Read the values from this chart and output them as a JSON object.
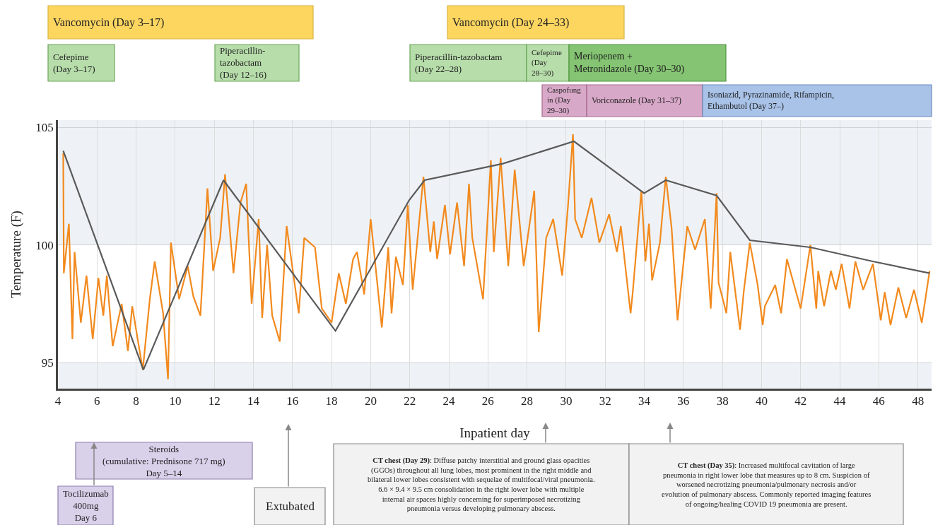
{
  "chart_data": {
    "type": "line",
    "xlabel": "Inpatient day",
    "ylabel": "Temperature (F)",
    "xlim": [
      4,
      48.7
    ],
    "xticks": [
      4,
      6,
      8,
      10,
      12,
      14,
      16,
      18,
      20,
      22,
      24,
      26,
      28,
      30,
      32,
      34,
      36,
      38,
      40,
      42,
      44,
      46,
      48
    ],
    "ylim": [
      93.9,
      105.3
    ],
    "yticks": [
      95,
      100,
      105
    ],
    "grid": true,
    "marker": "none",
    "line_style": "solid",
    "bands": [
      {
        "axis": "y",
        "from": 100,
        "to": 105.3,
        "color": "#eef2f6"
      },
      {
        "axis": "y",
        "from": 93.9,
        "to": 95,
        "color": "#eef2f6"
      }
    ],
    "series": [
      {
        "color": "#f28a1e",
        "x": [
          4.27,
          4.3,
          4.56,
          4.74,
          4.85,
          5.17,
          5.46,
          5.78,
          6.07,
          6.32,
          6.5,
          6.8,
          7.26,
          7.58,
          7.8,
          8.34,
          8.7,
          8.95,
          9.38,
          9.63,
          9.78,
          10.2,
          10.64,
          10.93,
          11.29,
          11.65,
          11.94,
          12.3,
          12.55,
          12.98,
          13.34,
          13.63,
          13.91,
          14.27,
          14.45,
          14.7,
          14.96,
          15.35,
          15.7,
          16.32,
          16.6,
          17.15,
          17.5,
          18.0,
          18.37,
          18.73,
          19.1,
          19.3,
          19.67,
          20.0,
          20.57,
          20.9,
          21.07,
          21.29,
          21.65,
          21.9,
          22.15,
          22.7,
          23.05,
          23.23,
          23.4,
          23.8,
          24.06,
          24.42,
          24.78,
          25.03,
          25.2,
          25.75,
          26.15,
          26.3,
          26.65,
          27.04,
          27.37,
          27.83,
          28.37,
          28.6,
          28.98,
          29.34,
          29.8,
          30.1,
          30.35,
          30.46,
          30.8,
          31.3,
          31.7,
          32.2,
          32.6,
          32.8,
          33.3,
          33.4,
          33.85,
          34.06,
          34.24,
          34.4,
          34.8,
          35.1,
          35.4,
          35.7,
          36.2,
          36.6,
          37.1,
          37.4,
          37.7,
          37.8,
          38.2,
          38.4,
          38.9,
          39.1,
          39.4,
          39.8,
          40.06,
          40.17,
          40.7,
          41.0,
          41.3,
          42.0,
          42.5,
          42.8,
          42.9,
          43.2,
          43.55,
          43.8,
          44.1,
          44.5,
          44.8,
          45.2,
          45.7,
          46.1,
          46.3,
          46.6,
          47.0,
          47.4,
          47.8,
          48.2,
          48.6
        ],
        "values": [
          103.9,
          98.8,
          100.9,
          96.0,
          99.7,
          96.7,
          98.7,
          96.0,
          98.6,
          97.0,
          98.7,
          95.7,
          97.5,
          95.5,
          97.4,
          94.7,
          97.7,
          99.3,
          97.1,
          94.3,
          100.1,
          97.7,
          99.1,
          97.8,
          97.0,
          102.4,
          98.9,
          100.3,
          103.0,
          98.8,
          101.8,
          102.6,
          97.5,
          101.1,
          96.9,
          100.0,
          97.0,
          95.9,
          100.8,
          97.1,
          100.3,
          99.9,
          97.3,
          96.7,
          98.8,
          97.5,
          99.4,
          99.7,
          97.9,
          101.1,
          96.5,
          99.9,
          97.1,
          99.5,
          98.3,
          101.7,
          98.1,
          102.9,
          99.7,
          101.0,
          99.4,
          101.7,
          99.6,
          101.8,
          99.1,
          102.6,
          100.3,
          97.7,
          103.6,
          99.7,
          103.7,
          99.1,
          103.2,
          99.1,
          102.3,
          96.3,
          100.3,
          101.1,
          98.7,
          101.7,
          104.7,
          101.1,
          100.3,
          102.0,
          100.1,
          101.3,
          99.7,
          100.8,
          97.1,
          97.9,
          102.3,
          99.3,
          100.9,
          98.5,
          100.1,
          102.9,
          100.7,
          96.8,
          100.8,
          99.8,
          101.1,
          97.3,
          102.2,
          98.4,
          97.1,
          99.7,
          96.4,
          98.1,
          100.1,
          98.3,
          96.6,
          97.4,
          98.3,
          97.1,
          99.4,
          97.3,
          100.0,
          97.3,
          98.9,
          97.4,
          98.9,
          98.1,
          99.2,
          97.3,
          99.3,
          98.1,
          99.2,
          96.8,
          98.0,
          96.6,
          98.2,
          96.9,
          98.1,
          96.7,
          98.9
        ]
      },
      {
        "color": "#5a5a5a",
        "x": [
          4.27,
          8.37,
          12.47,
          18.2,
          21.97,
          22.76,
          26.76,
          30.4,
          33.99,
          35.1,
          37.7,
          39.4,
          42.5,
          45.7,
          48.6
        ],
        "values": [
          104.0,
          94.7,
          102.75,
          96.35,
          101.9,
          102.75,
          103.45,
          104.4,
          102.2,
          102.75,
          102.1,
          100.2,
          99.9,
          99.3,
          98.8
        ]
      }
    ],
    "annotations": [
      "Vancomycin (Day 3–17)",
      "Cefepime\n(Day 3–17)",
      "Piperacillin-\ntazobactam\n(Day 12–16)",
      "Vancomycin (Day 24–33)",
      "Piperacillin-tazobactam\n(Day 22–28)",
      "Cefepime\n(Day\n28–30)",
      "Meriopenem +\nMetronidazole (Day 30–30)",
      "Caspofung\nin (Day\n29–30)",
      "Voriconazole (Day 31–37)",
      "Isoniazid, Pyrazinamide, Rifampicin,\nEthambutol (Day 37–)",
      "Steroids\n(cumulative: Prednisone 717 mg)\nDay 5–14",
      "Tocilizumab\n400mg\nDay 6",
      "Extubated",
      "CT chest (Day 29): Diffuse patchy interstitial and ground glass opacities\n(GGOs) throughout all lung lobes, most prominent in the right middle and\nbilateral lower lobes consistent with sequelae of multifocal/viral pneumonia.\n6.6 × 9.4 × 9.5 cm consolidation in the right lower lobe with multiple\ninternal air spaces highly concerning for superimposed necrotizing\npneumonia versus developing pulmonary abscess.",
      "CT chest (Day 35): Increased multifocal cavitation of large\npneumonia in right lower lobe that measures up to 8 cm. Suspicion of\nworsened necrotizing pneumonia/pulmonary necrosis and/or\nevolution of pulmonary abscess. Commonly reported imaging features\nof ongoing/healing COVID 19 pneumonia are present."
    ]
  }
}
